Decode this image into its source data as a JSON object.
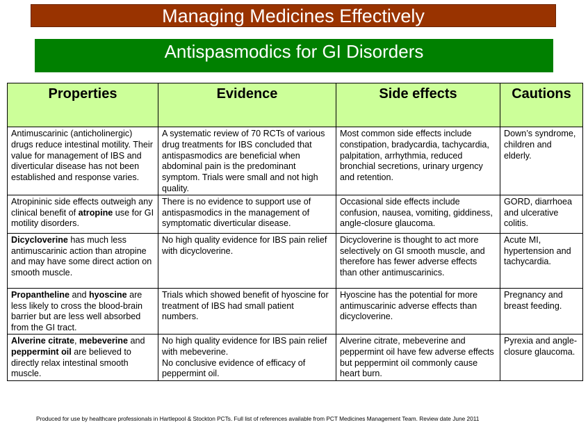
{
  "header": {
    "title": "Managing Medicines Effectively",
    "subtitle": "Antispasmodics for GI Disorders"
  },
  "table": {
    "columns": [
      "Properties",
      "Evidence",
      "Side effects",
      "Cautions"
    ],
    "rows": [
      {
        "properties": "Antimuscarinic (anticholinergic) drugs reduce intestinal motility. Their value for management of IBS and diverticular disease has not been established and response varies.",
        "evidence": "A systematic review of 70 RCTs of various drug treatments for IBS concluded that antispasmodics are beneficial when abdominal pain is the predominant symptom. Trials were small and not high quality.",
        "side_effects": "Most common side effects include constipation, bradycardia, tachycardia, palpitation, arrhythmia, reduced bronchial secretions, urinary urgency and retention.",
        "cautions": "Down’s syndrome, children and elderly."
      },
      {
        "properties_pre": "Atropininic side effects outweigh any clinical benefit of ",
        "properties_bold": "atropine",
        "properties_post": " use for GI motility disorders.",
        "evidence": "There is no evidence to support use of antispasmodics in the management of symptomatic diverticular disease.",
        "side_effects": "Occasional side effects include confusion, nausea, vomiting, giddiness, angle-closure glaucoma.",
        "cautions": "GORD, diarrhoea and ulcerative colitis."
      },
      {
        "properties_bold": "Dicycloverine",
        "properties_post": " has much less antimuscarinic action than atropine and may have some direct action on smooth muscle.",
        "evidence": "No high quality evidence for IBS pain relief with dicycloverine.",
        "side_effects": "Dicycloverine is thought to act more selectively on GI smooth muscle, and therefore has fewer adverse effects than other antimuscarinics.",
        "cautions": "Acute MI, hypertension and tachycardia."
      },
      {
        "properties_bold1": "Propantheline",
        "properties_mid": " and ",
        "properties_bold2": "hyoscine",
        "properties_post": " are less likely to cross the blood-brain barrier but are less well absorbed from the GI tract.",
        "evidence": "Trials which showed benefit of hyoscine for treatment of IBS had small patient numbers.",
        "side_effects": "Hyoscine has the potential for more antimuscarinic adverse effects than dicycloverine.",
        "cautions": "Pregnancy and breast feeding."
      },
      {
        "properties_bold1": "Alverine citrate",
        "properties_sep1": ", ",
        "properties_bold2": "mebeverine",
        "properties_sep2": " and ",
        "properties_bold3": "peppermint oil",
        "properties_post": " are believed to directly relax intestinal smooth muscle.",
        "evidence_line1": "No high quality evidence for IBS pain relief with mebeverine.",
        "evidence_line2": "No conclusive evidence of efficacy of peppermint oil.",
        "side_effects": "Alverine citrate, mebeverine and peppermint oil have few adverse effects but peppermint oil commonly cause heart burn.",
        "cautions": "Pyrexia and angle-closure glaucoma."
      }
    ]
  },
  "footer": {
    "text": "Produced for use by healthcare professionals in Hartlepool & Stockton PCTs. Full list of references available from PCT Medicines Management Team. Review date June 2011"
  },
  "colors": {
    "title_banner": "#993300",
    "subtitle_banner": "#008000",
    "header_row": "#ccff99"
  }
}
